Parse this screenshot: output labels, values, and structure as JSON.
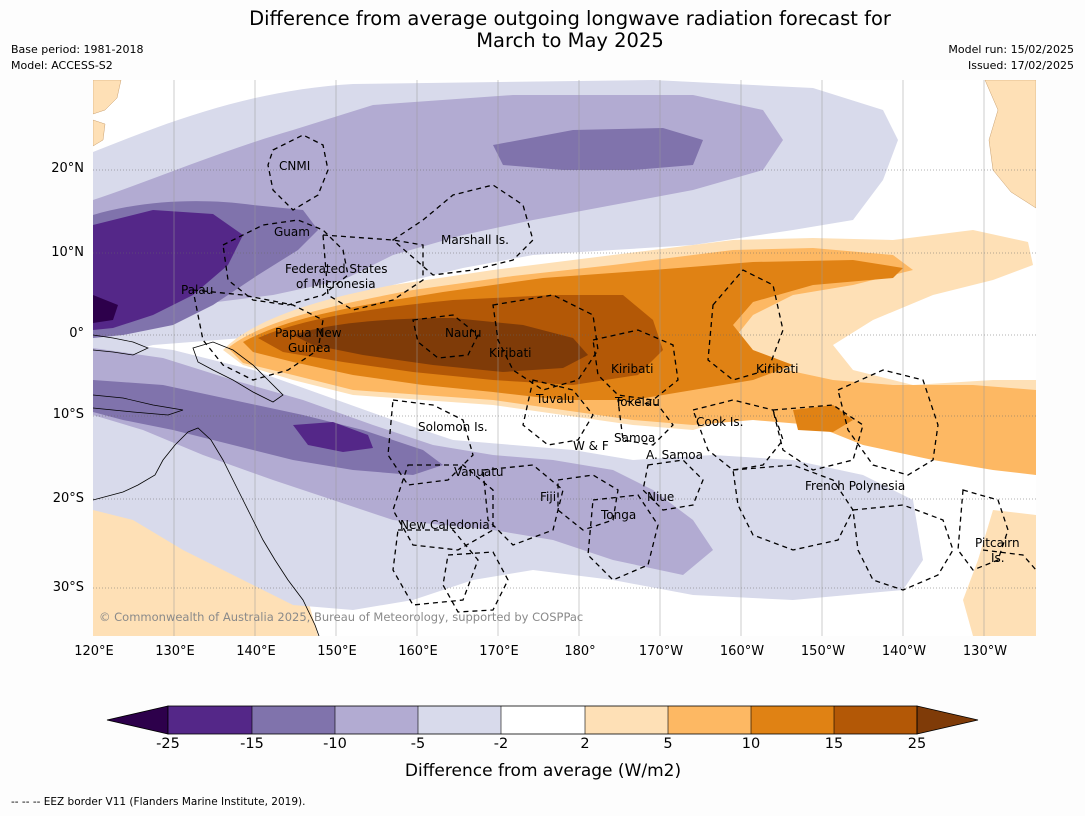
{
  "title_line1": "Difference from average outgoing longwave radiation forecast for",
  "title_line2": "March to May 2025",
  "meta": {
    "base_period": "Base period: 1981-2018",
    "model": "Model: ACCESS-S2",
    "model_run": "Model run: 15/02/2025",
    "issued": "Issued: 17/02/2025"
  },
  "latitude_labels": [
    "20°N",
    "10°N",
    "0°",
    "10°S",
    "20°S",
    "30°S"
  ],
  "longitude_labels": [
    "120°E",
    "130°E",
    "140°E",
    "150°E",
    "160°E",
    "170°E",
    "180°",
    "170°W",
    "160°W",
    "150°W",
    "140°W",
    "130°W"
  ],
  "places": {
    "cnmi": "CNMI",
    "guam": "Guam",
    "marshall": "Marshall Is.",
    "fsm_1": "Federated States",
    "fsm_2": "of Micronesia",
    "palau": "Palau",
    "png_1": "Papua New",
    "png_2": "Guinea",
    "nauru": "Nauru",
    "kiribati_w": "Kiribati",
    "kiribati_c": "Kiribati",
    "kiribati_e": "Kiribati",
    "tuvalu": "Tuvalu",
    "tokelau": "Tokelau",
    "cook": "Cook Is.",
    "solomon": "Solomon Is.",
    "wf": "W & F",
    "samoa": "Samoa",
    "a_samoa": "A. Samoa",
    "vanuatu": "Vanuatu",
    "fiji": "Fiji",
    "niue": "Niue",
    "tonga": "Tonga",
    "french_polynesia": "French Polynesia",
    "pitcairn_1": "Pitcairn",
    "pitcairn_2": "Is.",
    "new_caledonia": "New Caledonia"
  },
  "copyright": "© Commonwealth of Australia 2025, Bureau of Meteorology, supported by COSPPac",
  "colorbar": {
    "title": "Difference from average (W/m2)",
    "ticks": [
      "-25",
      "-15",
      "-10",
      "-5",
      "-2",
      "2",
      "5",
      "10",
      "15",
      "25"
    ],
    "colors": {
      "below_-25": "#2d004b",
      "-25_-15": "#542788",
      "-15_-10": "#8073ac",
      "-10_-5": "#b2abd2",
      "-5_-2": "#d8daeb",
      "-2_2": "#ffffff",
      "2_5": "#fee0b6",
      "5_10": "#fdb863",
      "10_15": "#e08214",
      "15_25": "#b35806",
      "above_25": "#7f3b08"
    }
  },
  "footer": "--  --  -- EEZ border V11 (Flanders Marine Institute, 2019)."
}
